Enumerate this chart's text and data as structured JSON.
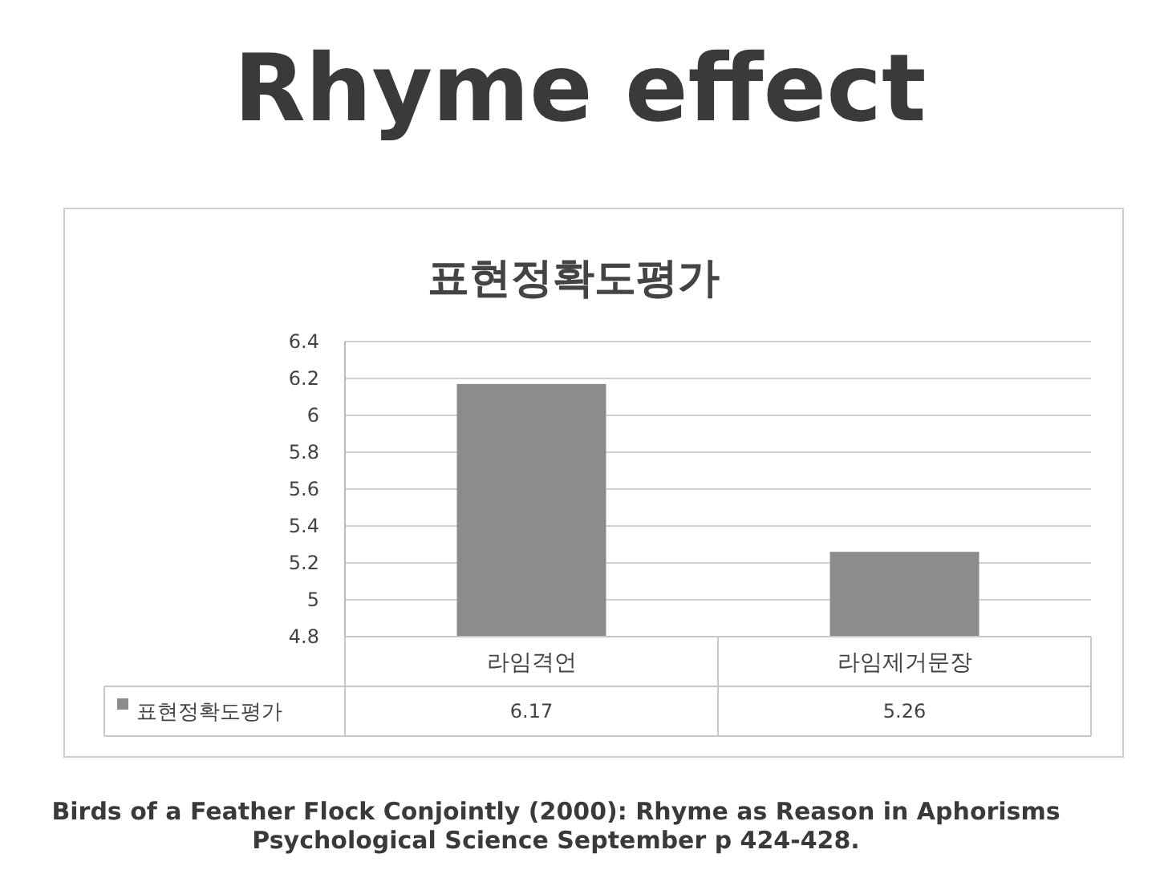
{
  "chart_data": {
    "type": "bar",
    "title": "Rhyme effect",
    "subtitle": "표현정확도평가",
    "categories": [
      "라임격언",
      "라임제거문장"
    ],
    "series": [
      {
        "name": "표현정확도평가",
        "color": "#8c8c8c",
        "values": [
          6.17,
          5.26
        ]
      }
    ],
    "ylim": [
      4.8,
      6.4
    ],
    "yticks": [
      4.8,
      5,
      5.2,
      5.4,
      5.6,
      5.8,
      6,
      6.2,
      6.4
    ],
    "grid": "y",
    "data_labels": true,
    "legend": "bottom",
    "annotations": [
      "Birds of a Feather Flock Conjointly (2000): Rhyme as Reason in Aphorisms",
      "Psychological Science September p 424-428."
    ]
  }
}
